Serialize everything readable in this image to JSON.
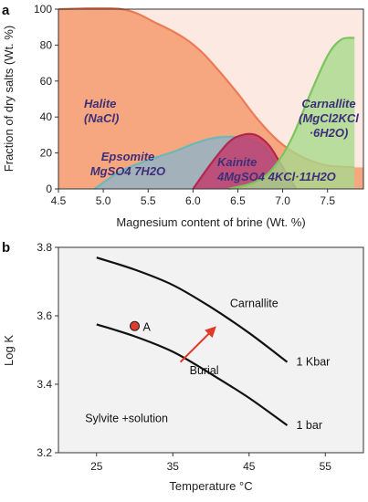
{
  "chart_data": [
    {
      "panel": "a",
      "type": "area",
      "xlabel": "Magnesium content of brine (Wt. %)",
      "ylabel": "Fraction of dry salts (Wt. %)",
      "xlim": [
        4.5,
        7.9
      ],
      "ylim": [
        0,
        100
      ],
      "xticks": [
        "4.5",
        "5.0",
        "5.5",
        "6.0",
        "6.5",
        "7.0",
        "7.5"
      ],
      "yticks": [
        "0",
        "20",
        "40",
        "60",
        "80",
        "100"
      ],
      "grid": false,
      "series": [
        {
          "name": "Halite (NaCl)",
          "color": "#f5a37a",
          "line": "#ee7a55",
          "x": [
            4.5,
            5.2,
            5.6,
            5.9,
            6.1,
            6.3,
            6.5,
            6.7,
            6.9,
            7.1,
            7.3,
            7.5,
            7.8
          ],
          "y": [
            100,
            100,
            92,
            84,
            76,
            65,
            53,
            40,
            29,
            21,
            16,
            13,
            12
          ]
        },
        {
          "name": "Epsomite MgSO4 7H2O",
          "color": "#8fb4c8",
          "line": "#6fb7b7",
          "x": [
            4.9,
            5.2,
            5.5,
            5.8,
            6.0,
            6.2,
            6.4,
            6.6,
            6.8,
            6.95,
            7.1
          ],
          "y": [
            0,
            10,
            16,
            21,
            25,
            28,
            29,
            28,
            23,
            12,
            0
          ]
        },
        {
          "name": "Kainite 4MgSO4 4KCl·11H2O",
          "color": "#c2386a",
          "line": "#b02850",
          "x": [
            6.0,
            6.2,
            6.4,
            6.55,
            6.7,
            6.85,
            7.0,
            7.15
          ],
          "y": [
            0,
            14,
            26,
            30,
            30,
            24,
            12,
            0
          ]
        },
        {
          "name": "Carnallite (MgCl2KCl ·6H2O)",
          "color": "#a8d98c",
          "line": "#7cc45c",
          "x": [
            6.4,
            6.7,
            6.9,
            7.1,
            7.3,
            7.5,
            7.65,
            7.8
          ],
          "y": [
            0,
            4,
            12,
            28,
            52,
            74,
            83,
            84
          ]
        }
      ],
      "annotations": [
        {
          "lines": [
            "Halite",
            "(NaCl)"
          ]
        },
        {
          "lines": [
            "Epsomite",
            "MgSO4 7H2O"
          ]
        },
        {
          "lines": [
            "Kainite",
            "4MgSO4 4KCl·11H2O"
          ]
        },
        {
          "lines": [
            "Carnallite",
            "(MgCl2KCl",
            "·6H2O)"
          ]
        }
      ]
    },
    {
      "panel": "b",
      "type": "line",
      "xlabel": "Temperature °C",
      "ylabel": "Log K",
      "xlim": [
        20,
        60
      ],
      "ylim": [
        3.2,
        3.8
      ],
      "xticks": [
        "25",
        "35",
        "45",
        "55"
      ],
      "yticks": [
        "3.2",
        "3.4",
        "3.6",
        "3.8"
      ],
      "grid": false,
      "series": [
        {
          "name": "1 Kbar",
          "x": [
            25,
            30,
            35,
            40,
            45,
            50
          ],
          "y": [
            3.77,
            3.735,
            3.69,
            3.625,
            3.55,
            3.465
          ]
        },
        {
          "name": "1 bar",
          "x": [
            25,
            30,
            35,
            40,
            45,
            50
          ],
          "y": [
            3.575,
            3.54,
            3.495,
            3.43,
            3.36,
            3.28
          ]
        }
      ],
      "points": [
        {
          "label": "A",
          "x": 30,
          "y": 3.57,
          "color": "#e03a2a"
        }
      ],
      "arrow": {
        "label": "Burial",
        "from": [
          36,
          3.465
        ],
        "to": [
          40.5,
          3.565
        ],
        "color": "#e03a2a"
      },
      "labels": [
        "Carnallite",
        "Sylvite +solution"
      ]
    }
  ]
}
